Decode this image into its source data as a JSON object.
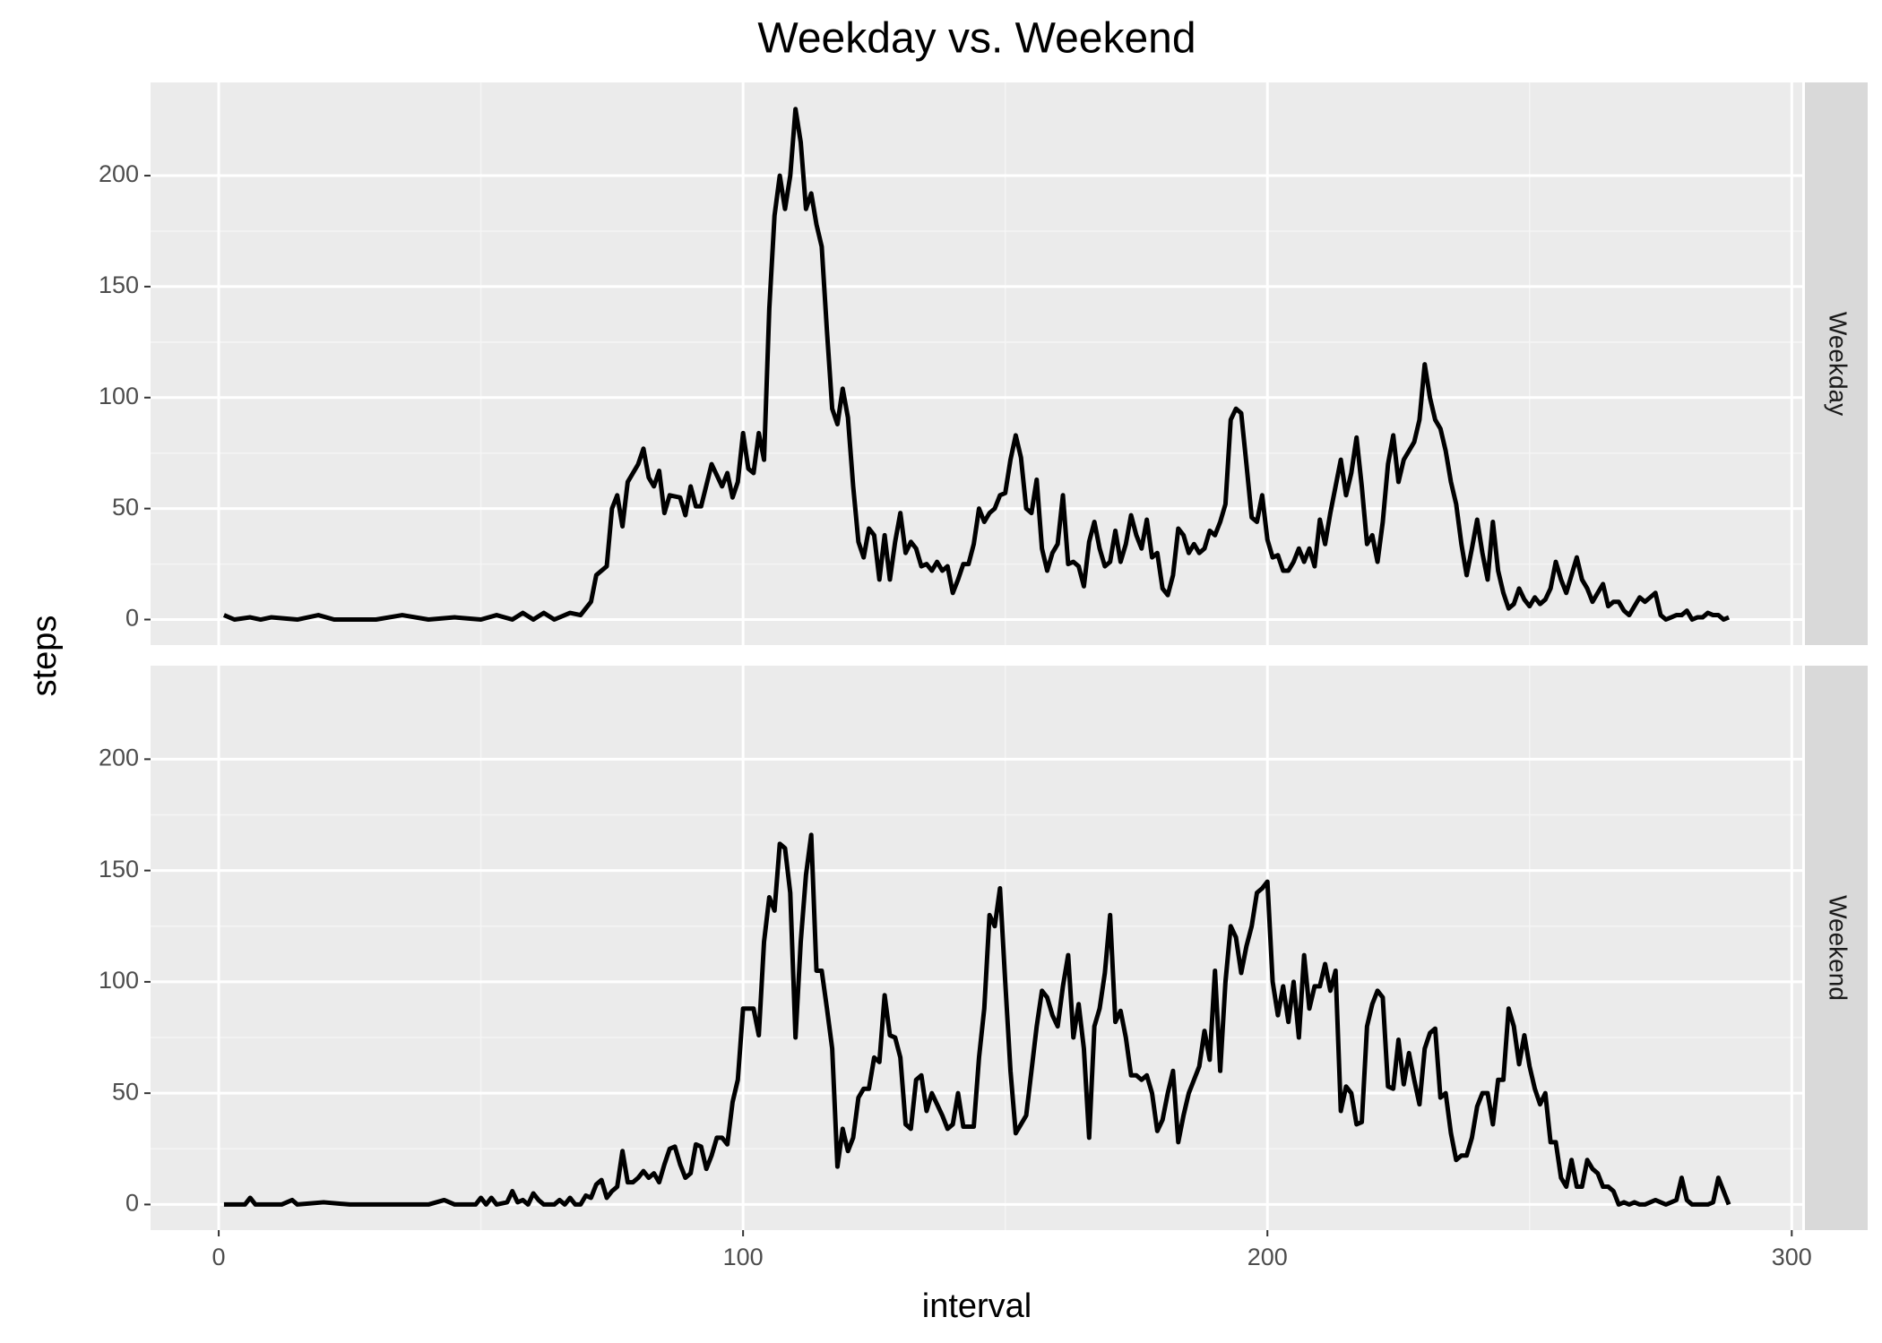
{
  "chart_data": [
    {
      "type": "line",
      "title": "Weekday vs. Weekend",
      "y_label": "steps",
      "facet": "Weekday",
      "color": "#000000",
      "xlim": [
        -13,
        302
      ],
      "xticks": [
        0,
        100,
        200,
        300
      ],
      "ylim": [
        -11.5,
        242
      ],
      "yticks": [
        0,
        50,
        100,
        150,
        200
      ],
      "grid": true,
      "x": [
        1,
        3,
        6,
        8,
        10,
        15,
        19,
        22,
        30,
        35,
        40,
        45,
        50,
        53,
        56,
        58,
        60,
        62,
        64,
        67,
        69,
        71,
        72,
        74,
        75,
        76,
        77,
        78,
        80,
        81,
        82,
        83,
        84,
        85,
        86,
        88,
        89,
        90,
        91,
        92,
        94,
        96,
        97,
        98,
        99,
        100,
        101,
        102,
        103,
        104,
        105,
        106,
        107,
        108,
        109,
        110,
        111,
        112,
        113,
        114,
        115,
        116,
        117,
        118,
        119,
        120,
        121,
        122,
        123,
        124,
        125,
        126,
        127,
        128,
        129,
        130,
        131,
        132,
        133,
        134,
        135,
        136,
        137,
        138,
        139,
        140,
        141,
        142,
        143,
        144,
        145,
        146,
        147,
        148,
        149,
        150,
        151,
        152,
        153,
        154,
        155,
        156,
        157,
        158,
        159,
        160,
        161,
        162,
        163,
        164,
        165,
        166,
        167,
        168,
        169,
        170,
        171,
        172,
        173,
        174,
        175,
        176,
        177,
        178,
        179,
        180,
        181,
        182,
        183,
        184,
        185,
        186,
        187,
        188,
        189,
        190,
        191,
        192,
        193,
        194,
        195,
        196,
        197,
        198,
        199,
        200,
        201,
        202,
        203,
        204,
        205,
        206,
        207,
        208,
        209,
        210,
        211,
        212,
        213,
        214,
        215,
        216,
        217,
        218,
        219,
        220,
        221,
        222,
        223,
        224,
        225,
        226,
        227,
        228,
        229,
        230,
        231,
        232,
        233,
        234,
        235,
        236,
        237,
        238,
        239,
        240,
        241,
        242,
        243,
        244,
        245,
        246,
        247,
        248,
        249,
        250,
        251,
        252,
        253,
        254,
        255,
        256,
        257,
        258,
        259,
        260,
        261,
        262,
        263,
        264,
        265,
        266,
        267,
        268,
        269,
        270,
        271,
        272,
        273,
        274,
        275,
        276,
        277,
        278,
        279,
        280,
        281,
        282,
        283,
        284,
        285,
        286,
        287,
        288
      ],
      "values": [
        2,
        0,
        1,
        0,
        1,
        0,
        2,
        0,
        0,
        2,
        0,
        1,
        0,
        2,
        0,
        3,
        0,
        3,
        0,
        3,
        2,
        8,
        20,
        24,
        50,
        56,
        42,
        62,
        70,
        77,
        64,
        60,
        67,
        48,
        56,
        55,
        47,
        60,
        51,
        51,
        70,
        60,
        66,
        55,
        62,
        84,
        68,
        66,
        84,
        72,
        140,
        182,
        200,
        185,
        200,
        230,
        215,
        185,
        192,
        178,
        168,
        130,
        95,
        88,
        104,
        91,
        60,
        35,
        28,
        41,
        38,
        18,
        38,
        18,
        35,
        48,
        30,
        35,
        32,
        24,
        25,
        22,
        26,
        22,
        24,
        12,
        18,
        25,
        25,
        34,
        50,
        44,
        48,
        50,
        56,
        57,
        72,
        83,
        73,
        50,
        48,
        63,
        32,
        22,
        30,
        34,
        56,
        25,
        26,
        24,
        15,
        35,
        44,
        32,
        24,
        26,
        40,
        26,
        34,
        47,
        38,
        32,
        45,
        28,
        30,
        14,
        11,
        20,
        41,
        38,
        30,
        34,
        30,
        32,
        40,
        38,
        44,
        52,
        90,
        95,
        93,
        70,
        46,
        44,
        56,
        36,
        28,
        29,
        22,
        22,
        26,
        32,
        26,
        32,
        24,
        45,
        34,
        48,
        60,
        72,
        56,
        66,
        82,
        60,
        34,
        38,
        26,
        44,
        70,
        83,
        62,
        72,
        76,
        80,
        90,
        115,
        100,
        90,
        86,
        76,
        62,
        52,
        34,
        20,
        32,
        45,
        30,
        18,
        44,
        22,
        12,
        5,
        7,
        14,
        9,
        6,
        10,
        7,
        9,
        14,
        26,
        18,
        12,
        20,
        28,
        18,
        14,
        8,
        12,
        16,
        6,
        8,
        8,
        4,
        2,
        6,
        10,
        8,
        10,
        12,
        2,
        0,
        1,
        2,
        2,
        4,
        0,
        1,
        1,
        3,
        2,
        2,
        0,
        1
      ]
    },
    {
      "type": "line",
      "x_label": "interval",
      "facet": "Weekend",
      "color": "#000000",
      "xlim": [
        -13,
        302
      ],
      "xticks": [
        0,
        100,
        200,
        300
      ],
      "ylim": [
        -11.5,
        242
      ],
      "yticks": [
        0,
        50,
        100,
        150,
        200
      ],
      "grid": true,
      "x": [
        1,
        5,
        6,
        7,
        12,
        14,
        15,
        20,
        25,
        40,
        43,
        45,
        49,
        50,
        51,
        52,
        53,
        55,
        56,
        57,
        58,
        59,
        60,
        61,
        62,
        64,
        65,
        66,
        67,
        68,
        69,
        70,
        71,
        72,
        73,
        74,
        75,
        76,
        77,
        78,
        79,
        80,
        81,
        82,
        83,
        84,
        85,
        86,
        87,
        88,
        89,
        90,
        91,
        92,
        93,
        94,
        95,
        96,
        97,
        98,
        99,
        100,
        101,
        102,
        103,
        104,
        105,
        106,
        107,
        108,
        109,
        110,
        111,
        112,
        113,
        114,
        115,
        116,
        117,
        118,
        119,
        120,
        121,
        122,
        123,
        124,
        125,
        126,
        127,
        128,
        129,
        130,
        131,
        132,
        133,
        134,
        135,
        136,
        137,
        138,
        139,
        140,
        141,
        142,
        143,
        144,
        145,
        146,
        147,
        148,
        149,
        150,
        151,
        152,
        153,
        154,
        155,
        156,
        157,
        158,
        159,
        160,
        161,
        162,
        163,
        164,
        165,
        166,
        167,
        168,
        169,
        170,
        171,
        172,
        173,
        174,
        175,
        176,
        177,
        178,
        179,
        180,
        181,
        182,
        183,
        184,
        185,
        186,
        187,
        188,
        189,
        190,
        191,
        192,
        193,
        194,
        195,
        196,
        197,
        198,
        199,
        200,
        201,
        202,
        203,
        204,
        205,
        206,
        207,
        208,
        209,
        210,
        211,
        212,
        213,
        214,
        215,
        216,
        217,
        218,
        219,
        220,
        221,
        222,
        223,
        224,
        225,
        226,
        227,
        228,
        229,
        230,
        231,
        232,
        233,
        234,
        235,
        236,
        237,
        238,
        239,
        240,
        241,
        242,
        243,
        244,
        245,
        246,
        247,
        248,
        249,
        250,
        251,
        252,
        253,
        254,
        255,
        256,
        257,
        258,
        259,
        260,
        261,
        262,
        263,
        264,
        265,
        266,
        267,
        268,
        269,
        270,
        271,
        272,
        273,
        274,
        275,
        276,
        277,
        278,
        279,
        280,
        281,
        282,
        283,
        284,
        285,
        286,
        287,
        288
      ],
      "values": [
        0,
        0,
        3,
        0,
        0,
        2,
        0,
        1,
        0,
        0,
        2,
        0,
        0,
        3,
        0,
        3,
        0,
        1,
        6,
        1,
        2,
        0,
        5,
        2,
        0,
        0,
        2,
        0,
        3,
        0,
        0,
        4,
        3,
        9,
        11,
        3,
        6,
        8,
        24,
        10,
        10,
        12,
        15,
        12,
        14,
        10,
        18,
        25,
        26,
        18,
        12,
        14,
        27,
        26,
        16,
        22,
        30,
        30,
        27,
        46,
        56,
        88,
        88,
        88,
        76,
        118,
        138,
        132,
        162,
        160,
        140,
        75,
        118,
        148,
        166,
        105,
        105,
        88,
        70,
        17,
        34,
        24,
        30,
        48,
        52,
        52,
        66,
        64,
        94,
        76,
        75,
        66,
        36,
        34,
        56,
        58,
        42,
        50,
        45,
        40,
        34,
        36,
        50,
        35,
        35,
        35,
        66,
        88,
        130,
        125,
        142,
        100,
        60,
        32,
        36,
        40,
        60,
        80,
        96,
        93,
        85,
        80,
        98,
        112,
        75,
        90,
        70,
        30,
        80,
        88,
        104,
        130,
        82,
        87,
        75,
        58,
        58,
        56,
        58,
        50,
        33,
        38,
        50,
        60,
        28,
        40,
        50,
        56,
        62,
        78,
        65,
        105,
        60,
        100,
        125,
        120,
        104,
        116,
        125,
        140,
        142,
        145,
        100,
        85,
        98,
        82,
        100,
        75,
        112,
        88,
        98,
        98,
        108,
        96,
        105,
        42,
        53,
        50,
        36,
        37,
        80,
        90,
        96,
        93,
        53,
        52,
        74,
        54,
        68,
        56,
        45,
        70,
        77,
        79,
        48,
        50,
        32,
        20,
        22,
        22,
        30,
        44,
        50,
        50,
        36,
        56,
        56,
        88,
        80,
        63,
        76,
        62,
        52,
        45,
        50,
        28,
        28,
        12,
        8,
        20,
        8,
        8,
        20,
        16,
        14,
        8,
        8,
        6,
        0,
        1,
        0,
        1,
        0,
        0,
        1,
        2,
        1,
        0,
        1,
        2,
        12,
        2,
        0,
        0,
        0,
        0,
        1,
        12,
        6,
        0
      ]
    }
  ]
}
